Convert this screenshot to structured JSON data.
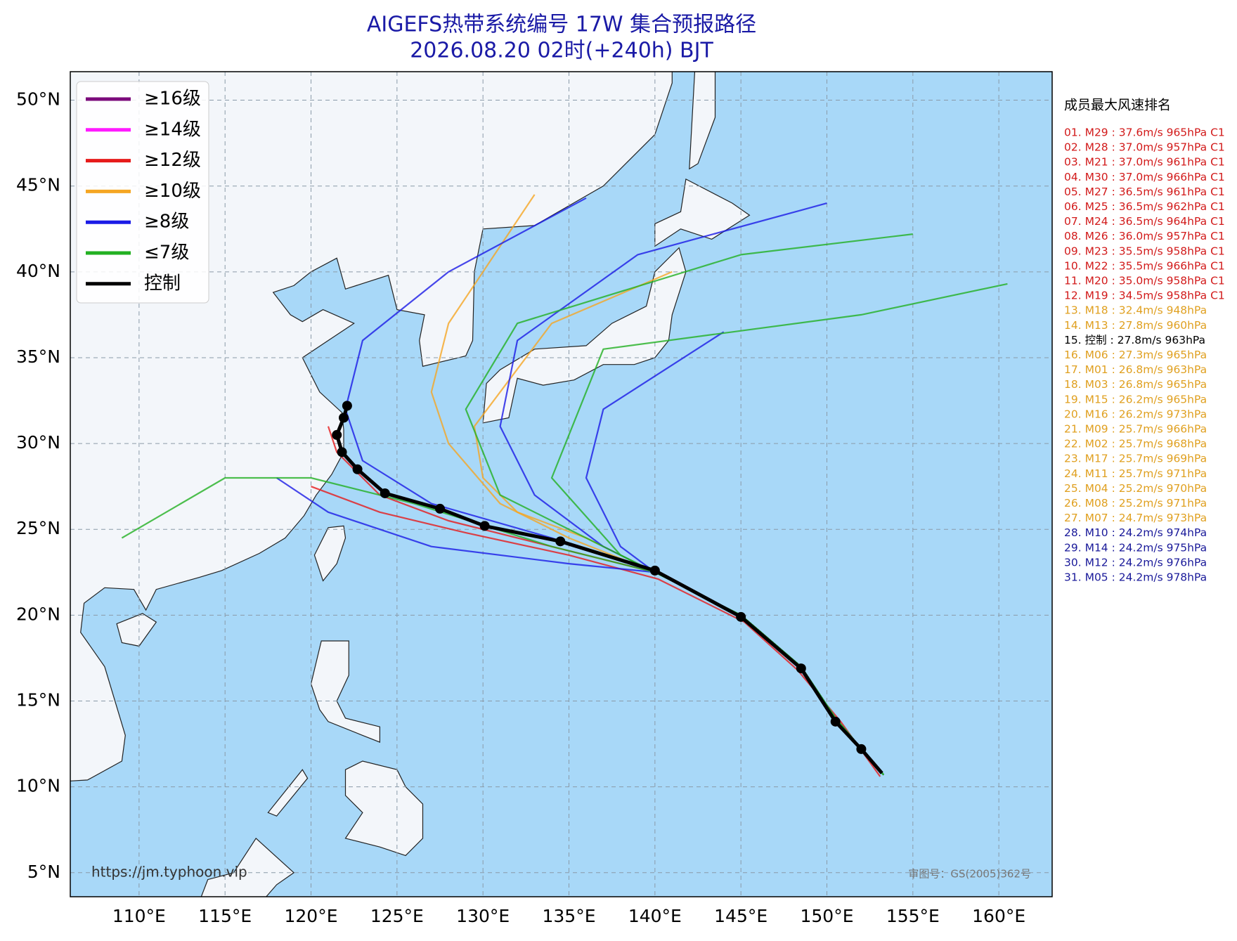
{
  "title": [
    "AIGEFS热带系统编号 17W 集合预报路径",
    "2026.08.20 02时(+240h) BJT"
  ],
  "legend": {
    "items": [
      {
        "label": "≥16级",
        "color": "#7b0a7b"
      },
      {
        "label": "≥14级",
        "color": "#ff1aff"
      },
      {
        "label": "≥12级",
        "color": "#e61a1a"
      },
      {
        "label": "≥10级",
        "color": "#f5a623"
      },
      {
        "label": "≥8级",
        "color": "#1a1ae6"
      },
      {
        "label": "≤7级",
        "color": "#22b022"
      },
      {
        "label": "控制",
        "color": "#000000"
      }
    ]
  },
  "ranking": {
    "title": "成员最大风速排名",
    "entries": [
      {
        "text": "01. M29 : 37.6m/s 965hPa C1",
        "color": "#d21a1a"
      },
      {
        "text": "02. M28 : 37.0m/s 957hPa C1",
        "color": "#d21a1a"
      },
      {
        "text": "03. M21 : 37.0m/s 961hPa C1",
        "color": "#d21a1a"
      },
      {
        "text": "04. M30 : 37.0m/s 966hPa C1",
        "color": "#d21a1a"
      },
      {
        "text": "05. M27 : 36.5m/s 961hPa C1",
        "color": "#d21a1a"
      },
      {
        "text": "06. M25 : 36.5m/s 962hPa C1",
        "color": "#d21a1a"
      },
      {
        "text": "07. M24 : 36.5m/s 964hPa C1",
        "color": "#d21a1a"
      },
      {
        "text": "08. M26 : 36.0m/s 957hPa C1",
        "color": "#d21a1a"
      },
      {
        "text": "09. M23 : 35.5m/s 958hPa C1",
        "color": "#d21a1a"
      },
      {
        "text": "10. M22 : 35.5m/s 966hPa C1",
        "color": "#d21a1a"
      },
      {
        "text": "11. M20 : 35.0m/s 958hPa C1",
        "color": "#d21a1a"
      },
      {
        "text": "12. M19 : 34.5m/s 958hPa C1",
        "color": "#d21a1a"
      },
      {
        "text": "13. M18 : 32.4m/s 948hPa",
        "color": "#e0a020"
      },
      {
        "text": "14. M13 : 27.8m/s 960hPa",
        "color": "#e0a020"
      },
      {
        "text": "15. 控制 : 27.8m/s 963hPa",
        "color": "#000000"
      },
      {
        "text": "16. M06 : 27.3m/s 965hPa",
        "color": "#e0a020"
      },
      {
        "text": "17. M01 : 26.8m/s 963hPa",
        "color": "#e0a020"
      },
      {
        "text": "18. M03 : 26.8m/s 965hPa",
        "color": "#e0a020"
      },
      {
        "text": "19. M15 : 26.2m/s 965hPa",
        "color": "#e0a020"
      },
      {
        "text": "20. M16 : 26.2m/s 973hPa",
        "color": "#e0a020"
      },
      {
        "text": "21. M09 : 25.7m/s 966hPa",
        "color": "#e0a020"
      },
      {
        "text": "22. M02 : 25.7m/s 968hPa",
        "color": "#e0a020"
      },
      {
        "text": "23. M17 : 25.7m/s 969hPa",
        "color": "#e0a020"
      },
      {
        "text": "24. M11 : 25.7m/s 971hPa",
        "color": "#e0a020"
      },
      {
        "text": "25. M04 : 25.2m/s 970hPa",
        "color": "#e0a020"
      },
      {
        "text": "26. M08 : 25.2m/s 971hPa",
        "color": "#e0a020"
      },
      {
        "text": "27. M07 : 24.7m/s 973hPa",
        "color": "#e0a020"
      },
      {
        "text": "28. M10 : 24.2m/s 974hPa",
        "color": "#1a1a9a"
      },
      {
        "text": "29. M14 : 24.2m/s 975hPa",
        "color": "#1a1a9a"
      },
      {
        "text": "30. M12 : 24.2m/s 976hPa",
        "color": "#1a1a9a"
      },
      {
        "text": "31. M05 : 24.2m/s 978hPa",
        "color": "#1a1a9a"
      }
    ]
  },
  "map": {
    "xlim": [
      106,
      163.1
    ],
    "ylim": [
      3.6,
      51.66
    ],
    "grid": true,
    "xticks": [
      {
        "value": 110,
        "label": "110°E"
      },
      {
        "value": 115,
        "label": "115°E"
      },
      {
        "value": 120,
        "label": "120°E"
      },
      {
        "value": 125,
        "label": "125°E"
      },
      {
        "value": 130,
        "label": "130°E"
      },
      {
        "value": 135,
        "label": "135°E"
      },
      {
        "value": 140,
        "label": "140°E"
      },
      {
        "value": 145,
        "label": "145°E"
      },
      {
        "value": 150,
        "label": "150°E"
      },
      {
        "value": 155,
        "label": "155°E"
      },
      {
        "value": 160,
        "label": "160°E"
      }
    ],
    "yticks": [
      {
        "value": 5,
        "label": "5°N"
      },
      {
        "value": 10,
        "label": "10°N"
      },
      {
        "value": 15,
        "label": "15°N"
      },
      {
        "value": 20,
        "label": "20°N"
      },
      {
        "value": 25,
        "label": "25°N"
      },
      {
        "value": 30,
        "label": "30°N"
      },
      {
        "value": 35,
        "label": "35°N"
      },
      {
        "value": 40,
        "label": "40°N"
      },
      {
        "value": 45,
        "label": "45°N"
      },
      {
        "value": 50,
        "label": "50°N"
      }
    ]
  },
  "ensemble_tracks": [
    {
      "color": "#e61a1a",
      "lon": [
        153.3,
        150.5,
        148.5,
        145,
        140,
        134,
        128,
        124,
        121.5,
        121
      ],
      "lat": [
        10.7,
        14,
        17,
        20,
        22.5,
        24,
        25.5,
        27,
        29.5,
        31
      ]
    },
    {
      "color": "#e61a1a",
      "lon": [
        153.1,
        150.8,
        148.3,
        145.2,
        140.2,
        135,
        129,
        124,
        120
      ],
      "lat": [
        10.6,
        13.8,
        16.8,
        19.6,
        22.1,
        23.5,
        24.8,
        26,
        27.5
      ]
    },
    {
      "color": "#f5a623",
      "lon": [
        153.3,
        150.5,
        148.5,
        145,
        140,
        135,
        131,
        128,
        127,
        128,
        130,
        133
      ],
      "lat": [
        10.7,
        14,
        17,
        20,
        22.5,
        24.5,
        26.5,
        30,
        33,
        37,
        40,
        44.5
      ]
    },
    {
      "color": "#f5a623",
      "lon": [
        153.3,
        150.5,
        148.5,
        145,
        140,
        136,
        132,
        130,
        129.5,
        134,
        141
      ],
      "lat": [
        10.7,
        14,
        17,
        20,
        22.5,
        24.5,
        26,
        28,
        31,
        37,
        40
      ]
    },
    {
      "color": "#1a1ae6",
      "lon": [
        153.3,
        150.5,
        148.5,
        145,
        140,
        134,
        127,
        123,
        122,
        123,
        128,
        136
      ],
      "lat": [
        10.7,
        14,
        17,
        20,
        22.5,
        24.5,
        26.5,
        29,
        32,
        36,
        40,
        44.3
      ]
    },
    {
      "color": "#1a1ae6",
      "lon": [
        153.3,
        150.5,
        148.5,
        145,
        140,
        137,
        133,
        131,
        132,
        139,
        150
      ],
      "lat": [
        10.7,
        14,
        17,
        20,
        22.5,
        24,
        27,
        31,
        36,
        41,
        44
      ]
    },
    {
      "color": "#1a1ae6",
      "lon": [
        153.3,
        150.5,
        148.5,
        145,
        140,
        135,
        127,
        121,
        118
      ],
      "lat": [
        10.7,
        14,
        17,
        20,
        22.5,
        23,
        24,
        26,
        28
      ]
    },
    {
      "color": "#1a1ae6",
      "lon": [
        153.3,
        150.5,
        148.5,
        145,
        140,
        138,
        136,
        137,
        144
      ],
      "lat": [
        10.7,
        14,
        17,
        20,
        22.5,
        24,
        28,
        32,
        36.5
      ]
    },
    {
      "color": "#22b022",
      "lon": [
        153.3,
        150.5,
        148.5,
        145,
        140,
        134,
        126,
        120,
        115,
        109
      ],
      "lat": [
        10.7,
        14,
        17,
        20,
        22.5,
        24,
        26.5,
        28,
        28,
        24.5
      ]
    },
    {
      "color": "#22b022",
      "lon": [
        153.3,
        150.5,
        148.5,
        145,
        140,
        136,
        131,
        129,
        132,
        145,
        155
      ],
      "lat": [
        10.7,
        14,
        17,
        20,
        22.5,
        24.5,
        27,
        32,
        37,
        41,
        42.2
      ]
    },
    {
      "color": "#22b022",
      "lon": [
        153.3,
        150.5,
        148.5,
        145,
        140,
        138,
        134,
        137,
        152,
        160.5
      ],
      "lat": [
        10.7,
        14,
        17,
        20,
        22.5,
        23.5,
        28,
        35.5,
        37.5,
        39.3
      ]
    }
  ],
  "control_track": {
    "color": "#000000",
    "lon": [
      153.2,
      152,
      150.5,
      148.5,
      145,
      140,
      134.5,
      130.1,
      127.5,
      124.3,
      122.7,
      121.8,
      121.5,
      121.9,
      122.1
    ],
    "lat": [
      10.8,
      12.2,
      13.8,
      16.9,
      19.9,
      22.6,
      24.3,
      25.2,
      26.2,
      27.1,
      28.5,
      29.5,
      30.5,
      31.5,
      32.2
    ]
  },
  "source_url": "https://jm.typhoon.vip",
  "approval_no": "审图号：GS(2005)362号"
}
